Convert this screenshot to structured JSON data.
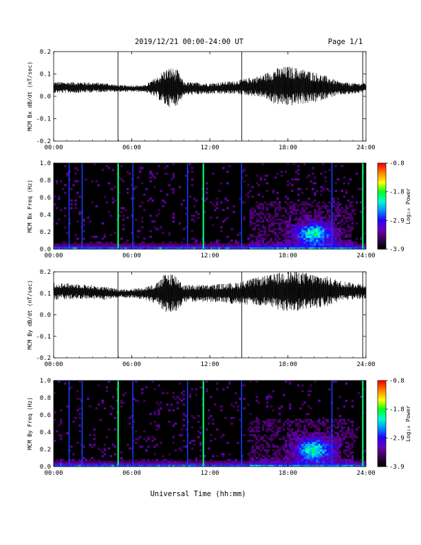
{
  "header": {
    "title": "2019/12/21  00:00-24:00 UT",
    "page": "Page 1/1"
  },
  "x_axis_title": "Universal Time (hh:mm)",
  "colors": {
    "trace": "#000000",
    "spectrogram_background": "#000000",
    "colormap": [
      "#000000",
      "#3c0050",
      "#6a00b8",
      "#2200ff",
      "#0090ff",
      "#00ffd0",
      "#00ff20",
      "#ffff00",
      "#ff8800",
      "#ff0000"
    ]
  },
  "chart_data": [
    {
      "type": "line",
      "id": "bx-dbdt",
      "ylabel": "MCM Bx dB/dt (nT/sec)",
      "xlim": [
        0,
        24
      ],
      "ylim": [
        -0.2,
        0.2
      ],
      "x_ticks": [
        "00:00",
        "06:00",
        "12:00",
        "18:00",
        "24:00"
      ],
      "y_ticks": [
        "-0.2",
        "-0.1",
        "0.0",
        "0.1",
        "0.2"
      ],
      "series": [
        {
          "x": [
            0,
            2,
            4,
            5,
            6,
            7,
            8,
            8.5,
            9,
            9.5,
            10,
            12,
            14,
            16,
            17,
            18,
            19,
            20,
            21,
            22,
            23,
            24
          ],
          "baseline": [
            0.04,
            0.04,
            0.04,
            0.035,
            0.035,
            0.035,
            0.04,
            0.04,
            0.04,
            0.04,
            0.035,
            0.035,
            0.04,
            0.045,
            0.045,
            0.045,
            0.045,
            0.04,
            0.04,
            0.035,
            0.035,
            0.04
          ],
          "envelope_amplitude": [
            0.025,
            0.025,
            0.02,
            0.015,
            0.015,
            0.015,
            0.05,
            0.08,
            0.09,
            0.08,
            0.03,
            0.025,
            0.03,
            0.05,
            0.08,
            0.09,
            0.08,
            0.07,
            0.05,
            0.03,
            0.025,
            0.02
          ]
        }
      ],
      "spikes_hours": [
        4.95,
        14.45,
        23.75
      ]
    },
    {
      "type": "heatmap",
      "id": "bx-spectrogram",
      "ylabel": "MCM Bx Freq (Hz)",
      "xlim": [
        0,
        24
      ],
      "ylim": [
        0,
        1
      ],
      "x_ticks": [
        "00:00",
        "06:00",
        "12:00",
        "18:00",
        "24:00"
      ],
      "y_ticks": [
        "0.0",
        "0.2",
        "0.4",
        "0.6",
        "0.8",
        "1.0"
      ],
      "colorbar": {
        "label": "Log₁₀ Power",
        "range": [
          -3.9,
          -0.8
        ],
        "ticks": [
          "-0.8",
          "-1.8",
          "-2.9",
          "-3.9"
        ]
      },
      "active_region": {
        "x": [
          17.8,
          22
        ],
        "y": [
          0.05,
          0.4
        ],
        "peak_x": 20,
        "peak_y": 0.18
      },
      "vertical_lines_hours": [
        1.2,
        2.2,
        4.95,
        6.1,
        10.3,
        11.5,
        14.45,
        21.4,
        23.75
      ]
    },
    {
      "type": "line",
      "id": "by-dbdt",
      "ylabel": "MCM By dB/dt (nT/sec)",
      "xlim": [
        0,
        24
      ],
      "ylim": [
        -0.2,
        0.2
      ],
      "x_ticks": [
        "00:00",
        "06:00",
        "12:00",
        "18:00",
        "24:00"
      ],
      "y_ticks": [
        "-0.2",
        "-0.1",
        "0.0",
        "0.1",
        "0.2"
      ],
      "series": [
        {
          "x": [
            0,
            2,
            4,
            5,
            6,
            7,
            8,
            8.5,
            9,
            9.5,
            10,
            12,
            14,
            16,
            17,
            18,
            19,
            20,
            21,
            22,
            23,
            24
          ],
          "baseline": [
            0.11,
            0.11,
            0.1,
            0.1,
            0.1,
            0.1,
            0.1,
            0.1,
            0.1,
            0.1,
            0.1,
            0.1,
            0.1,
            0.11,
            0.11,
            0.11,
            0.11,
            0.11,
            0.11,
            0.11,
            0.11,
            0.11
          ],
          "envelope_amplitude": [
            0.04,
            0.035,
            0.03,
            0.02,
            0.02,
            0.03,
            0.05,
            0.09,
            0.1,
            0.08,
            0.04,
            0.04,
            0.05,
            0.07,
            0.08,
            0.1,
            0.09,
            0.08,
            0.07,
            0.05,
            0.04,
            0.035
          ]
        }
      ],
      "spikes_hours": [
        4.95,
        14.45,
        23.75
      ]
    },
    {
      "type": "heatmap",
      "id": "by-spectrogram",
      "ylabel": "MCM By Freq (Hz)",
      "xlim": [
        0,
        24
      ],
      "ylim": [
        0,
        1
      ],
      "x_ticks": [
        "00:00",
        "06:00",
        "12:00",
        "18:00",
        "24:00"
      ],
      "y_ticks": [
        "0.0",
        "0.2",
        "0.4",
        "0.6",
        "0.8",
        "1.0"
      ],
      "colorbar": {
        "label": "Log₁₀ Power",
        "range": [
          -3.9,
          -0.8
        ],
        "ticks": [
          "-0.8",
          "-1.8",
          "-2.9",
          "-3.9"
        ]
      },
      "active_region": {
        "x": [
          17.8,
          22
        ],
        "y": [
          0.05,
          0.4
        ],
        "peak_x": 20,
        "peak_y": 0.2
      },
      "vertical_lines_hours": [
        1.2,
        2.2,
        4.95,
        6.1,
        10.3,
        11.5,
        14.45,
        21.4,
        23.75
      ]
    }
  ]
}
